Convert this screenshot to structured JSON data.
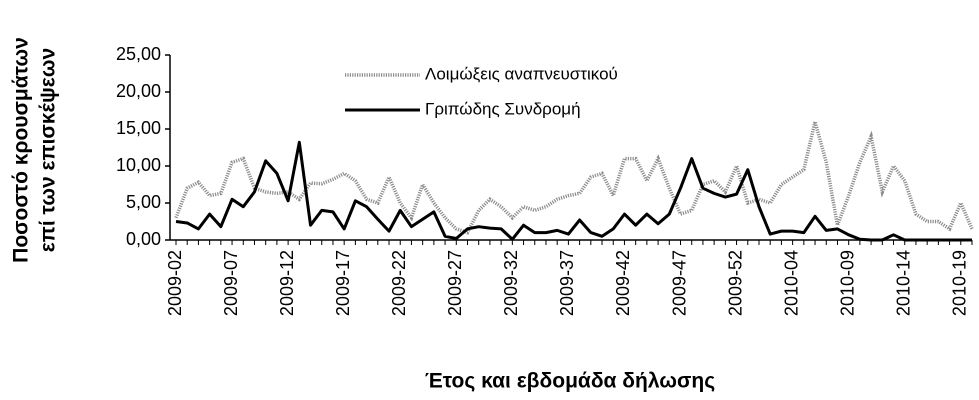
{
  "chart_data": {
    "type": "line",
    "x_label": "Έτος και εβδομάδα δήλωσης",
    "y_label": [
      "Ποσοστό κρουσμάτων",
      "επί των επισκέψεων"
    ],
    "categories": [
      "2009-02",
      null,
      null,
      null,
      null,
      "2009-07",
      null,
      null,
      null,
      null,
      "2009-12",
      null,
      null,
      null,
      null,
      "2009-17",
      null,
      null,
      null,
      null,
      "2009-22",
      null,
      null,
      null,
      null,
      "2009-27",
      null,
      null,
      null,
      null,
      "2009-32",
      null,
      null,
      null,
      null,
      "2009-37",
      null,
      null,
      null,
      null,
      "2009-42",
      null,
      null,
      null,
      null,
      "2009-47",
      null,
      null,
      null,
      null,
      "2009-52",
      null,
      null,
      null,
      null,
      "2010-04",
      null,
      null,
      null,
      null,
      "2010-09",
      null,
      null,
      null,
      null,
      "2010-14",
      null,
      null,
      null,
      null,
      "2010-19",
      null
    ],
    "series": [
      {
        "name": "Λοιμώξεις αναπνευστικού",
        "color": "#8c8c8c",
        "style": "dotted",
        "values": [
          3.0,
          7.0,
          7.8,
          6.0,
          6.3,
          10.5,
          11.0,
          7.0,
          6.5,
          6.3,
          6.5,
          5.5,
          7.7,
          7.6,
          8.2,
          9.0,
          8.0,
          5.5,
          5.0,
          8.5,
          5.0,
          3.0,
          7.5,
          5.0,
          3.0,
          1.5,
          1.0,
          4.0,
          5.5,
          4.5,
          3.0,
          4.5,
          4.0,
          4.5,
          5.5,
          6.0,
          6.3,
          8.5,
          9.0,
          6.0,
          11.0,
          11.0,
          8.0,
          11.0,
          7.0,
          3.5,
          4.0,
          7.5,
          8.0,
          6.5,
          10.0,
          5.0,
          5.5,
          5.0,
          7.5,
          8.5,
          9.5,
          16.0,
          10.5,
          2.0,
          6.0,
          10.5,
          14.0,
          6.5,
          10.0,
          8.0,
          3.5,
          2.5,
          2.5,
          1.5,
          5.0,
          1.5
        ]
      },
      {
        "name": "Γριπώδης Συνδρομή",
        "color": "#000000",
        "style": "solid",
        "values": [
          2.5,
          2.3,
          1.5,
          3.5,
          1.8,
          5.5,
          4.5,
          6.5,
          10.7,
          9.0,
          5.3,
          13.2,
          2.0,
          4.0,
          3.8,
          1.5,
          5.3,
          4.5,
          2.8,
          1.2,
          4.0,
          1.8,
          2.8,
          3.8,
          0.5,
          0.2,
          1.5,
          1.8,
          1.6,
          1.5,
          0.1,
          2.0,
          1.0,
          1.0,
          1.3,
          0.8,
          2.7,
          1.0,
          0.5,
          1.5,
          3.5,
          2.0,
          3.5,
          2.2,
          3.5,
          7.0,
          11.0,
          7.0,
          6.3,
          5.8,
          6.2,
          9.5,
          4.5,
          0.8,
          1.2,
          1.2,
          1.0,
          3.2,
          1.3,
          1.5,
          0.7,
          0.1,
          0,
          0,
          0.7,
          0,
          0,
          0,
          0,
          0,
          0,
          0
        ]
      }
    ],
    "ylim": [
      0,
      25
    ],
    "yticks": [
      {
        "value": 0,
        "label": "0,00"
      },
      {
        "value": 5,
        "label": "5,00"
      },
      {
        "value": 10,
        "label": "10,00"
      },
      {
        "value": 15,
        "label": "15,00"
      },
      {
        "value": 20,
        "label": "20,00"
      },
      {
        "value": 25,
        "label": "25,00"
      }
    ],
    "grid": false
  }
}
